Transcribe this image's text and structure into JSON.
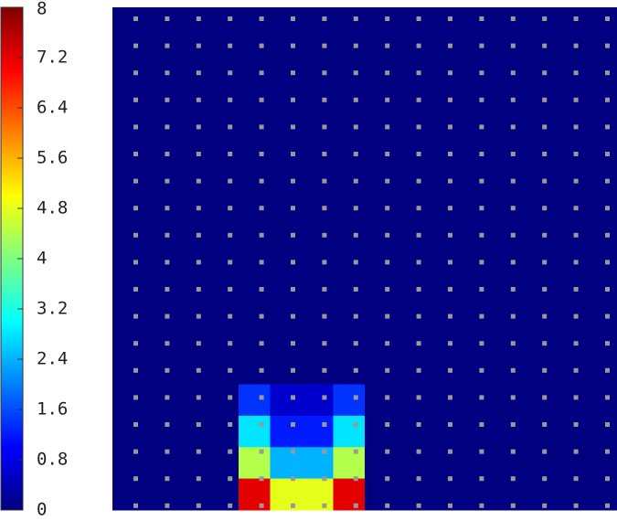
{
  "chart_data": {
    "type": "heatmap",
    "colormap": "jet",
    "colorbar": {
      "lim": [
        0,
        8
      ],
      "ticks": [
        0,
        0.8,
        1.6,
        2.4,
        3.2,
        4,
        4.8,
        5.6,
        6.4,
        7.2,
        8
      ]
    },
    "z": [
      [
        0,
        0,
        0,
        0,
        0,
        0,
        0,
        0,
        0,
        0,
        0,
        0,
        0,
        0,
        0,
        0
      ],
      [
        0,
        0,
        0,
        0,
        0,
        0,
        0,
        0,
        0,
        0,
        0,
        0,
        0,
        0,
        0,
        0
      ],
      [
        0,
        0,
        0,
        0,
        0,
        0,
        0,
        0,
        0,
        0,
        0,
        0,
        0,
        0,
        0,
        0
      ],
      [
        0,
        0,
        0,
        0,
        0,
        0,
        0,
        0,
        0,
        0,
        0,
        0,
        0,
        0,
        0,
        0
      ],
      [
        0,
        0,
        0,
        0,
        0,
        0,
        0,
        0,
        0,
        0,
        0,
        0,
        0,
        0,
        0,
        0
      ],
      [
        0,
        0,
        0,
        0,
        0,
        0,
        0,
        0,
        0,
        0,
        0,
        0,
        0,
        0,
        0,
        0
      ],
      [
        0,
        0,
        0,
        0,
        0,
        0,
        0,
        0,
        0,
        0,
        0,
        0,
        0,
        0,
        0,
        0
      ],
      [
        0,
        0,
        0,
        0,
        0,
        0,
        0,
        0,
        0,
        0,
        0,
        0,
        0,
        0,
        0,
        0
      ],
      [
        0,
        0,
        0,
        0,
        0,
        0,
        0,
        0,
        0,
        0,
        0,
        0,
        0,
        0,
        0,
        0
      ],
      [
        0,
        0,
        0,
        0,
        0,
        0,
        0,
        0,
        0,
        0,
        0,
        0,
        0,
        0,
        0,
        0
      ],
      [
        0,
        0,
        0,
        0,
        0,
        0,
        0,
        0,
        0,
        0,
        0,
        0,
        0,
        0,
        0,
        0
      ],
      [
        0,
        0,
        0,
        0,
        0,
        0,
        0,
        0,
        0,
        0,
        0,
        0,
        0,
        0,
        0,
        0
      ],
      [
        0,
        0,
        0,
        0,
        1.4,
        0.6,
        0.6,
        1.4,
        0,
        0,
        0,
        0,
        0,
        0,
        0,
        0
      ],
      [
        0,
        0,
        0,
        0,
        2.8,
        1.2,
        1.2,
        2.8,
        0,
        0,
        0,
        0,
        0,
        0,
        0,
        0
      ],
      [
        0,
        0,
        0,
        0,
        4.4,
        2.4,
        2.4,
        4.4,
        0,
        0,
        0,
        0,
        0,
        0,
        0,
        0
      ],
      [
        0,
        0,
        0,
        0,
        7.2,
        4.8,
        4.8,
        7.2,
        0,
        0,
        0,
        0,
        0,
        0,
        0,
        0
      ]
    ]
  }
}
